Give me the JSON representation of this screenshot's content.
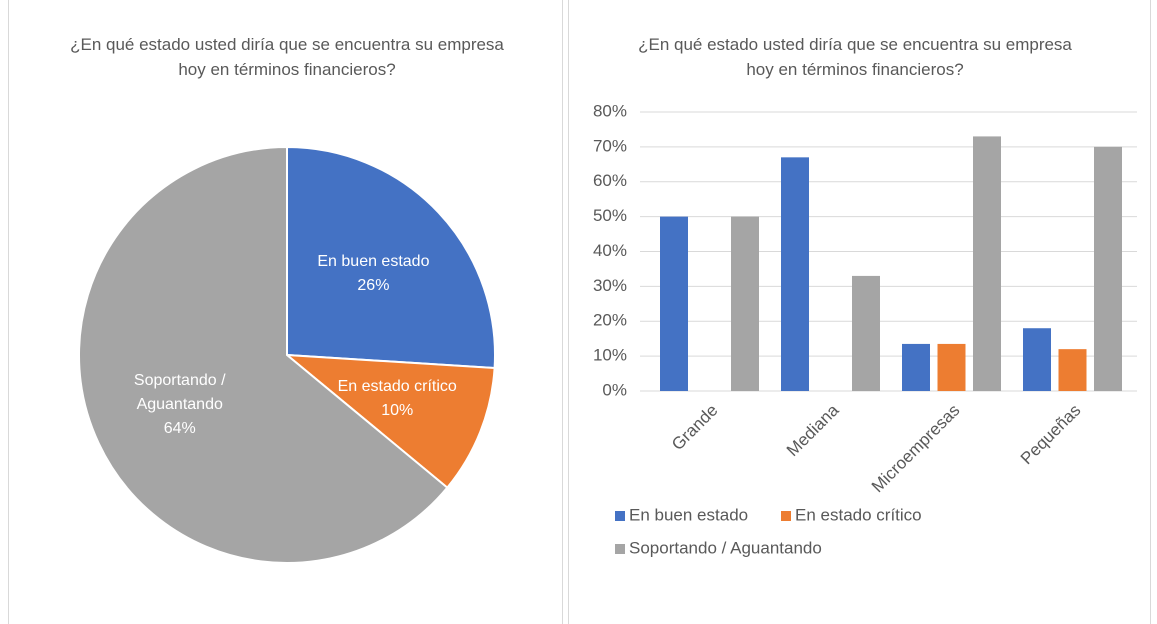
{
  "chart_data": [
    {
      "type": "pie",
      "title": "¿En qué estado usted diría que se encuentra su empresa hoy en términos financieros?",
      "categories": [
        "En buen estado",
        "En estado crítico",
        "Soportando / Aguantando"
      ],
      "values": [
        26,
        10,
        64
      ],
      "value_labels": [
        "26%",
        "10%",
        "64%"
      ],
      "colors": [
        "#4472c4",
        "#ed7d31",
        "#a5a5a5"
      ]
    },
    {
      "type": "bar",
      "title": "¿En qué estado usted diría que se encuentra su empresa hoy en términos financieros?",
      "categories": [
        "Grande",
        "Mediana",
        "Microempresas",
        "Pequeñas"
      ],
      "series": [
        {
          "name": "En buen estado",
          "color": "#4472c4",
          "values": [
            50,
            67,
            13.5,
            18
          ]
        },
        {
          "name": "En estado crítico",
          "color": "#ed7d31",
          "values": [
            0,
            0,
            13.5,
            12
          ]
        },
        {
          "name": "Soportando / Aguantando",
          "color": "#a5a5a5",
          "values": [
            50,
            33,
            73,
            70
          ]
        }
      ],
      "ylim": [
        0,
        80
      ],
      "yticks": [
        {
          "value": 0,
          "label": "0%"
        },
        {
          "value": 10,
          "label": "10%"
        },
        {
          "value": 20,
          "label": "20%"
        },
        {
          "value": 30,
          "label": "30%"
        },
        {
          "value": 40,
          "label": "40%"
        },
        {
          "value": 50,
          "label": "50%"
        },
        {
          "value": 60,
          "label": "60%"
        },
        {
          "value": 70,
          "label": "70%"
        },
        {
          "value": 80,
          "label": "80%"
        }
      ],
      "grid": true,
      "legend": "bottom"
    }
  ]
}
